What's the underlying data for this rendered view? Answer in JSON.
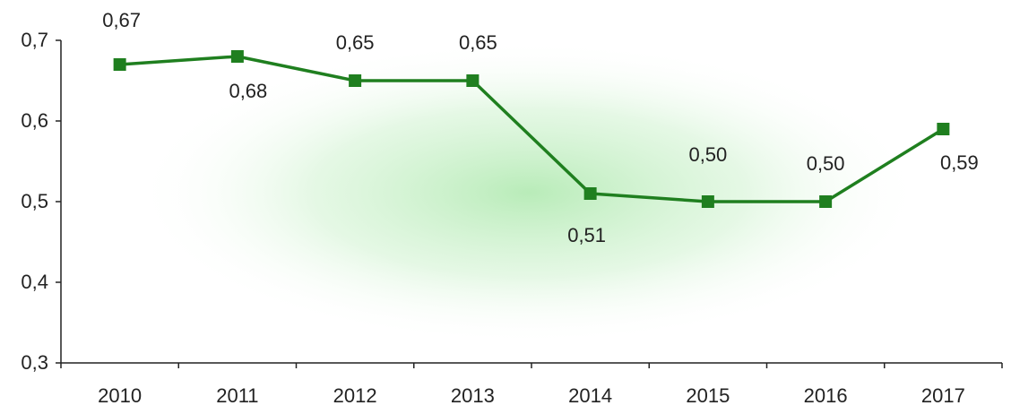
{
  "chart_data": {
    "type": "line",
    "title": "",
    "xlabel": "",
    "ylabel": "",
    "categories": [
      "2010",
      "2011",
      "2012",
      "2013",
      "2014",
      "2015",
      "2016",
      "2017"
    ],
    "series": [
      {
        "values": [
          0.67,
          0.68,
          0.65,
          0.65,
          0.51,
          0.5,
          0.5,
          0.59
        ],
        "color": "#1f7f1f"
      }
    ],
    "data_labels": [
      "0,67",
      "0,68",
      "0,65",
      "0,65",
      "0,51",
      "0,50",
      "0,50",
      "0,59"
    ],
    "ylim": [
      0.3,
      0.7
    ],
    "y_ticks": [
      0.3,
      0.4,
      0.5,
      0.6,
      0.7
    ],
    "y_tick_labels": [
      "0,3",
      "0,4",
      "0,5",
      "0,6",
      "0,7"
    ],
    "grid": false,
    "legend": "none",
    "background_glow_color": "#7fdc7f",
    "marker": "square"
  }
}
